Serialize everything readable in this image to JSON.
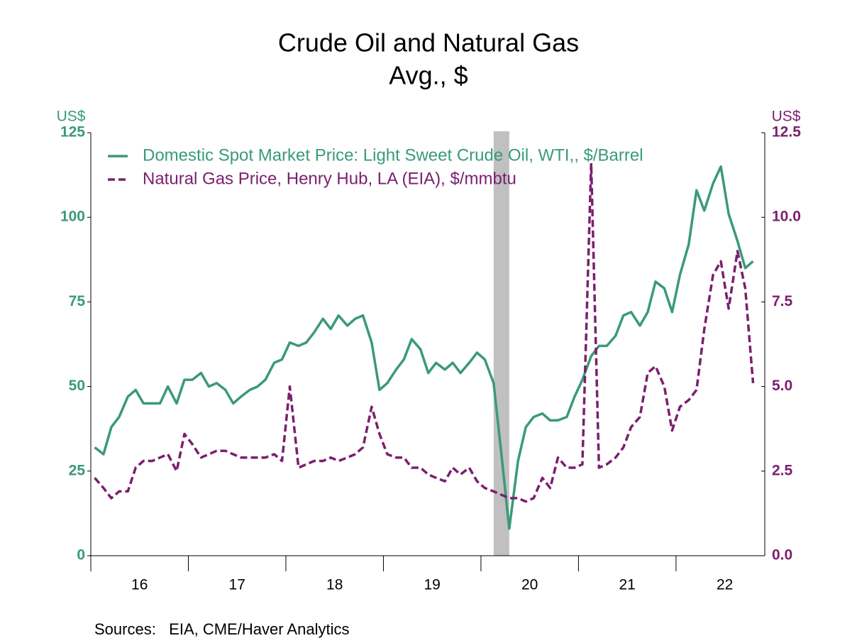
{
  "chart_data": {
    "type": "line",
    "title": "Crude Oil and Natural Gas",
    "subtitle": "Avg., $",
    "y_unit": "US$",
    "y2_unit": "US$",
    "source": "Sources:   EIA, CME/Haver Analytics",
    "recession": [
      2020.13,
      2020.29
    ],
    "xlim": [
      2016,
      2022.91
    ],
    "xticks": [
      {
        "value": 2016.5,
        "label": "16"
      },
      {
        "value": 2017.5,
        "label": "17"
      },
      {
        "value": 2018.5,
        "label": "18"
      },
      {
        "value": 2019.5,
        "label": "19"
      },
      {
        "value": 2020.5,
        "label": "20"
      },
      {
        "value": 2021.5,
        "label": "21"
      },
      {
        "value": 2022.5,
        "label": "22"
      }
    ],
    "ylim": [
      0,
      125
    ],
    "yticks": [
      0,
      25,
      50,
      75,
      100,
      125
    ],
    "y2lim": [
      0,
      12.5
    ],
    "y2ticks": [
      {
        "value": 0,
        "label": "0.0"
      },
      2.5,
      {
        "value": 5,
        "label": "5.0"
      },
      7.5,
      {
        "value": 10,
        "label": "10.0"
      },
      12.5
    ],
    "x": [
      2016.04,
      2016.13,
      2016.21,
      2016.29,
      2016.38,
      2016.46,
      2016.54,
      2016.63,
      2016.71,
      2016.79,
      2016.88,
      2016.96,
      2017.04,
      2017.13,
      2017.21,
      2017.29,
      2017.38,
      2017.46,
      2017.54,
      2017.63,
      2017.71,
      2017.79,
      2017.88,
      2017.96,
      2018.04,
      2018.13,
      2018.21,
      2018.29,
      2018.38,
      2018.46,
      2018.54,
      2018.63,
      2018.71,
      2018.79,
      2018.88,
      2018.96,
      2019.04,
      2019.13,
      2019.21,
      2019.29,
      2019.38,
      2019.46,
      2019.54,
      2019.63,
      2019.71,
      2019.79,
      2019.88,
      2019.96,
      2020.04,
      2020.13,
      2020.21,
      2020.29,
      2020.38,
      2020.46,
      2020.54,
      2020.63,
      2020.71,
      2020.79,
      2020.88,
      2020.96,
      2021.04,
      2021.13,
      2021.21,
      2021.29,
      2021.38,
      2021.46,
      2021.54,
      2021.63,
      2021.71,
      2021.79,
      2021.88,
      2021.96,
      2022.04,
      2022.13,
      2022.21,
      2022.29,
      2022.38,
      2022.46,
      2022.54,
      2022.63,
      2022.71,
      2022.79
    ],
    "series": [
      {
        "name": "Domestic Spot Market Price: Light Sweet Crude Oil, WTI,, $/Barrel",
        "color": "#3a9a78",
        "dash": false,
        "values": [
          32,
          30,
          38,
          41,
          47,
          49,
          45,
          45,
          45,
          50,
          45,
          52,
          52,
          54,
          50,
          51,
          49,
          45,
          47,
          49,
          50,
          52,
          57,
          58,
          63,
          62,
          63,
          66,
          70,
          67,
          71,
          68,
          70,
          71,
          63,
          49,
          51,
          55,
          58,
          64,
          61,
          54,
          57,
          55,
          57,
          54,
          57,
          60,
          58,
          51,
          30,
          8,
          28,
          38,
          41,
          42,
          40,
          40,
          41,
          47,
          52,
          59,
          62,
          62,
          65,
          71,
          72,
          68,
          72,
          81,
          79,
          72,
          83,
          92,
          108,
          102,
          110,
          115,
          101,
          93,
          85,
          87
        ]
      },
      {
        "name": "Natural Gas Price, Henry Hub, LA (EIA), $/mmbtu",
        "color": "#7b1f6e",
        "dash": true,
        "axis": "y2",
        "values": [
          2.3,
          2.0,
          1.7,
          1.9,
          1.9,
          2.6,
          2.8,
          2.8,
          2.9,
          3.0,
          2.5,
          3.6,
          3.3,
          2.9,
          3.0,
          3.1,
          3.1,
          3.0,
          2.9,
          2.9,
          2.9,
          2.9,
          3.0,
          2.8,
          5.0,
          2.6,
          2.7,
          2.8,
          2.8,
          2.9,
          2.8,
          2.9,
          3.0,
          3.2,
          4.4,
          3.6,
          3.0,
          2.9,
          2.9,
          2.6,
          2.6,
          2.4,
          2.3,
          2.2,
          2.6,
          2.4,
          2.6,
          2.2,
          2.0,
          1.9,
          1.8,
          1.7,
          1.7,
          1.6,
          1.7,
          2.3,
          2.0,
          2.9,
          2.6,
          2.6,
          2.7,
          11.6,
          2.6,
          2.7,
          2.9,
          3.2,
          3.8,
          4.1,
          5.4,
          5.6,
          5.0,
          3.7,
          4.4,
          4.6,
          4.9,
          6.7,
          8.3,
          8.7,
          7.3,
          9.0,
          7.9,
          5.1
        ]
      }
    ]
  }
}
